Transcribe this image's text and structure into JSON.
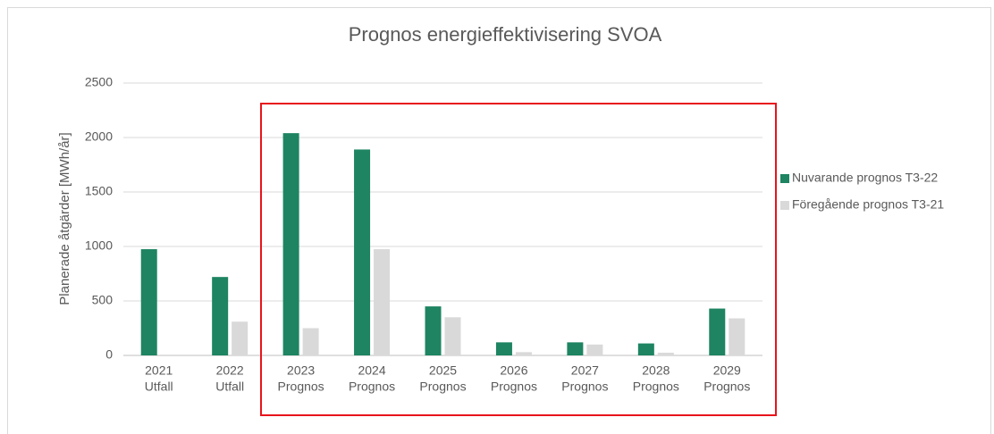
{
  "chart_data": {
    "type": "bar",
    "title": "Prognos energieffektivisering SVOA",
    "y_label": "Planerade åtgärder [MWh/år]",
    "categories": [
      [
        "2021",
        "Utfall"
      ],
      [
        "2022",
        "Utfall"
      ],
      [
        "2023",
        "Prognos"
      ],
      [
        "2024",
        "Prognos"
      ],
      [
        "2025",
        "Prognos"
      ],
      [
        "2026",
        "Prognos"
      ],
      [
        "2027",
        "Prognos"
      ],
      [
        "2028",
        "Prognos"
      ],
      [
        "2029",
        "Prognos"
      ]
    ],
    "series": [
      {
        "name": "Nuvarande prognos T3-22",
        "color": "#1e8462",
        "values": [
          975,
          720,
          2040,
          1890,
          450,
          120,
          120,
          110,
          430
        ]
      },
      {
        "name": "Föregående prognos T3-21",
        "color": "#d9d9d9",
        "values": [
          0,
          310,
          250,
          975,
          350,
          30,
          100,
          25,
          340
        ]
      }
    ],
    "ylim": [
      0,
      2500
    ],
    "yticks": [
      0,
      500,
      1000,
      1500,
      2000,
      2500
    ],
    "grid": true,
    "legend": "right"
  }
}
